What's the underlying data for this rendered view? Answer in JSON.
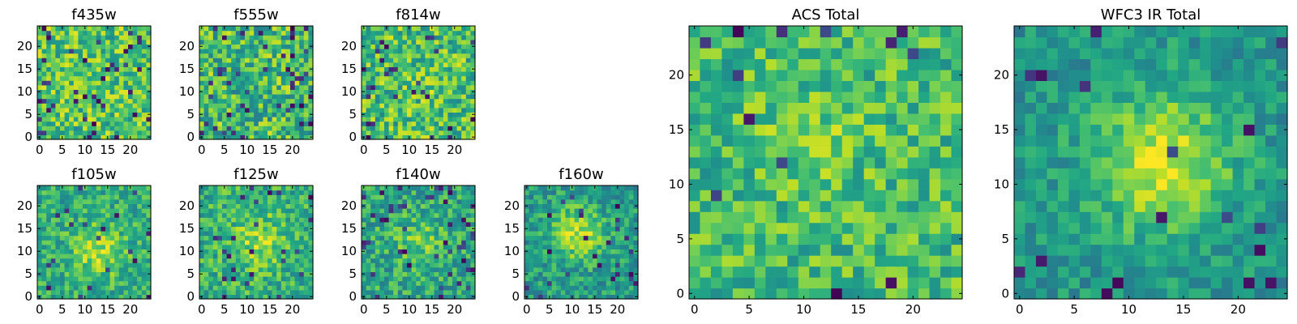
{
  "chart_data": {
    "type": "heatmap",
    "grid_size": 25,
    "colormap": "viridis",
    "panels": [
      {
        "id": "f435w",
        "title": "f435w",
        "xlim": [
          0,
          24
        ],
        "ylim": [
          0,
          24
        ],
        "xticks": [
          0,
          5,
          10,
          15,
          20
        ],
        "yticks": [
          0,
          5,
          10,
          15,
          20
        ],
        "xtick_labels": [
          "0",
          "5",
          "10",
          "15",
          "20"
        ],
        "ytick_labels": [
          "0",
          "5",
          "10",
          "15",
          "20"
        ],
        "base_level": 0.72,
        "noise": 0.24,
        "dark_fraction": 0.06,
        "peak": {
          "x": 12,
          "y": 12,
          "amp": 0.0,
          "width": 3
        },
        "seed": 11
      },
      {
        "id": "f555w",
        "title": "f555w",
        "xlim": [
          0,
          24
        ],
        "ylim": [
          0,
          24
        ],
        "xticks": [
          0,
          5,
          10,
          15,
          20
        ],
        "yticks": [
          0,
          5,
          10,
          15,
          20
        ],
        "xtick_labels": [
          "0",
          "5",
          "10",
          "15",
          "20"
        ],
        "ytick_labels": [
          "0",
          "5",
          "10",
          "15",
          "20"
        ],
        "base_level": 0.68,
        "noise": 0.26,
        "dark_fraction": 0.07,
        "peak": {
          "x": 12,
          "y": 12,
          "amp": 0.0,
          "width": 3
        },
        "seed": 23
      },
      {
        "id": "f814w",
        "title": "f814w",
        "xlim": [
          0,
          24
        ],
        "ylim": [
          0,
          24
        ],
        "xticks": [
          0,
          5,
          10,
          15,
          20
        ],
        "yticks": [
          0,
          5,
          10,
          15,
          20
        ],
        "xtick_labels": [
          "0",
          "5",
          "10",
          "15",
          "20"
        ],
        "ytick_labels": [
          "0",
          "5",
          "10",
          "15",
          "20"
        ],
        "base_level": 0.7,
        "noise": 0.25,
        "dark_fraction": 0.05,
        "peak": {
          "x": 12,
          "y": 12,
          "amp": 0.05,
          "width": 3
        },
        "seed": 37
      },
      {
        "id": "f105w",
        "title": "f105w",
        "xlim": [
          0,
          24
        ],
        "ylim": [
          0,
          24
        ],
        "xticks": [
          0,
          5,
          10,
          15,
          20
        ],
        "yticks": [
          0,
          5,
          10,
          15,
          20
        ],
        "xtick_labels": [
          "0",
          "5",
          "10",
          "15",
          "20"
        ],
        "ytick_labels": [
          "0",
          "5",
          "10",
          "15",
          "20"
        ],
        "base_level": 0.62,
        "noise": 0.18,
        "dark_fraction": 0.04,
        "peak": {
          "x": 13,
          "y": 10,
          "amp": 0.25,
          "width": 4
        },
        "seed": 41
      },
      {
        "id": "f125w",
        "title": "f125w",
        "xlim": [
          0,
          24
        ],
        "ylim": [
          0,
          24
        ],
        "xticks": [
          0,
          5,
          10,
          15,
          20
        ],
        "yticks": [
          0,
          5,
          10,
          15,
          20
        ],
        "xtick_labels": [
          "0",
          "5",
          "10",
          "15",
          "20"
        ],
        "ytick_labels": [
          "0",
          "5",
          "10",
          "15",
          "20"
        ],
        "base_level": 0.64,
        "noise": 0.2,
        "dark_fraction": 0.05,
        "peak": {
          "x": 13,
          "y": 12,
          "amp": 0.22,
          "width": 4
        },
        "seed": 53
      },
      {
        "id": "f140w",
        "title": "f140w",
        "xlim": [
          0,
          24
        ],
        "ylim": [
          0,
          24
        ],
        "xticks": [
          0,
          5,
          10,
          15,
          20
        ],
        "yticks": [
          0,
          5,
          10,
          15,
          20
        ],
        "xtick_labels": [
          "0",
          "5",
          "10",
          "15",
          "20"
        ],
        "ytick_labels": [
          "0",
          "5",
          "10",
          "15",
          "20"
        ],
        "base_level": 0.6,
        "noise": 0.2,
        "dark_fraction": 0.06,
        "peak": {
          "x": 12,
          "y": 12,
          "amp": 0.15,
          "width": 4
        },
        "seed": 67
      },
      {
        "id": "f160w",
        "title": "f160w",
        "xlim": [
          0,
          24
        ],
        "ylim": [
          0,
          24
        ],
        "xticks": [
          0,
          5,
          10,
          15,
          20
        ],
        "yticks": [
          0,
          5,
          10,
          15,
          20
        ],
        "xtick_labels": [
          "0",
          "5",
          "10",
          "15",
          "20"
        ],
        "ytick_labels": [
          "0",
          "5",
          "10",
          "15",
          "20"
        ],
        "base_level": 0.55,
        "noise": 0.18,
        "dark_fraction": 0.04,
        "peak": {
          "x": 11,
          "y": 14,
          "amp": 0.35,
          "width": 4
        },
        "seed": 79
      },
      {
        "id": "acs_total",
        "title": "ACS Total",
        "xlim": [
          0,
          24
        ],
        "ylim": [
          0,
          24
        ],
        "xticks": [
          0,
          5,
          10,
          15,
          20
        ],
        "yticks": [
          0,
          5,
          10,
          15,
          20
        ],
        "xtick_labels": [
          "0",
          "5",
          "10",
          "15",
          "20"
        ],
        "ytick_labels": [
          "0",
          "5",
          "10",
          "15",
          "20"
        ],
        "base_level": 0.68,
        "noise": 0.2,
        "dark_fraction": 0.02,
        "peak": {
          "x": 11,
          "y": 14,
          "amp": 0.08,
          "width": 4
        },
        "seed": 97
      },
      {
        "id": "wfc3_ir_total",
        "title": "WFC3 IR Total",
        "xlim": [
          0,
          24
        ],
        "ylim": [
          0,
          24
        ],
        "xticks": [
          0,
          5,
          10,
          15,
          20
        ],
        "yticks": [
          0,
          5,
          10,
          15,
          20
        ],
        "xtick_labels": [
          "0",
          "5",
          "10",
          "15",
          "20"
        ],
        "ytick_labels": [
          "0",
          "5",
          "10",
          "15",
          "20"
        ],
        "base_level": 0.52,
        "noise": 0.14,
        "dark_fraction": 0.03,
        "peak": {
          "x": 13,
          "y": 12,
          "amp": 0.42,
          "width": 4.5
        },
        "seed": 113
      }
    ]
  }
}
